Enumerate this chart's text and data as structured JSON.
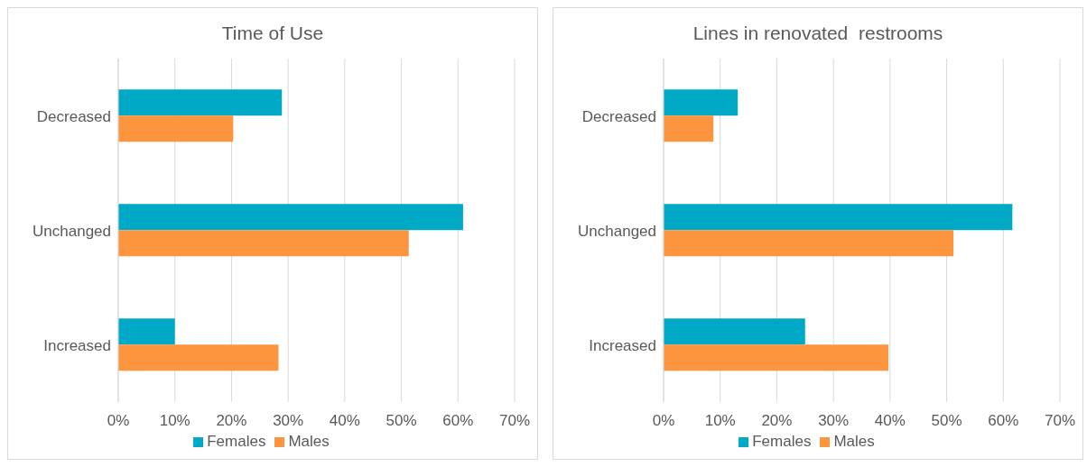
{
  "chart_data": [
    {
      "type": "bar",
      "orientation": "horizontal",
      "title": "Time of Use",
      "categories": [
        "Decreased",
        "Unchanged",
        "Increased"
      ],
      "series": [
        {
          "name": "Females",
          "color": "#00aac6",
          "values": [
            28.9,
            60.9,
            10.0
          ]
        },
        {
          "name": "Males",
          "color": "#fd953f",
          "values": [
            20.3,
            51.3,
            28.3
          ]
        }
      ],
      "xlim": [
        0,
        70
      ],
      "xticks": [
        {
          "value": 0,
          "label": "0%"
        },
        {
          "value": 10,
          "label": "10%"
        },
        {
          "value": 20,
          "label": "20%"
        },
        {
          "value": 30,
          "label": "30%"
        },
        {
          "value": 40,
          "label": "40%"
        },
        {
          "value": 50,
          "label": "50%"
        },
        {
          "value": 60,
          "label": "60%"
        },
        {
          "value": 70,
          "label": "70%"
        }
      ],
      "grid": "x",
      "legend": "bottom"
    },
    {
      "type": "bar",
      "orientation": "horizontal",
      "title": "Lines in renovated  restrooms",
      "categories": [
        "Decreased",
        "Unchanged",
        "Increased"
      ],
      "series": [
        {
          "name": "Females",
          "color": "#00aac6",
          "values": [
            13.1,
            61.6,
            25.0
          ]
        },
        {
          "name": "Males",
          "color": "#fd953f",
          "values": [
            8.8,
            51.2,
            39.7
          ]
        }
      ],
      "xlim": [
        0,
        70
      ],
      "xticks": [
        {
          "value": 0,
          "label": "0%"
        },
        {
          "value": 10,
          "label": "10%"
        },
        {
          "value": 20,
          "label": "20%"
        },
        {
          "value": 30,
          "label": "30%"
        },
        {
          "value": 40,
          "label": "40%"
        },
        {
          "value": 50,
          "label": "50%"
        },
        {
          "value": 60,
          "label": "60%"
        },
        {
          "value": 70,
          "label": "70%"
        }
      ],
      "grid": "x",
      "legend": "bottom"
    }
  ]
}
